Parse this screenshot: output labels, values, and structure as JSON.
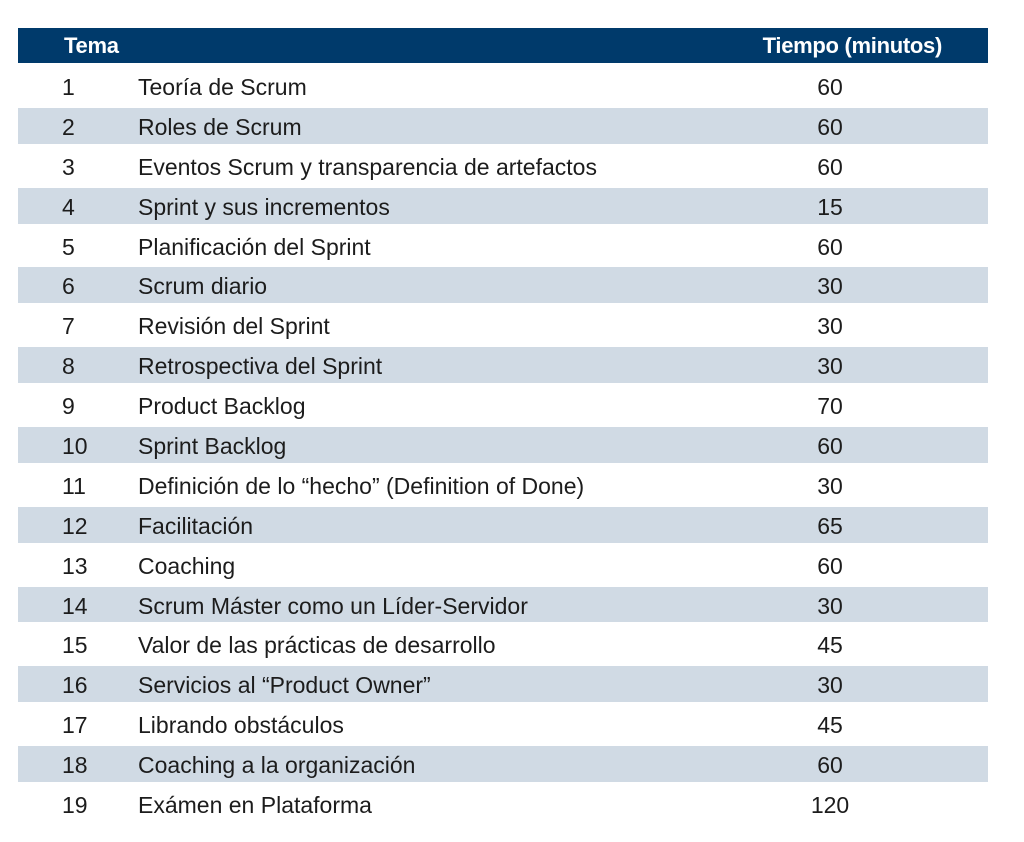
{
  "table": {
    "headers": {
      "topic": "Tema",
      "time": "Tiempo (minutos)"
    },
    "rows": [
      {
        "num": "1",
        "topic": "Teoría de Scrum",
        "time": "60"
      },
      {
        "num": "2",
        "topic": "Roles de Scrum",
        "time": "60"
      },
      {
        "num": "3",
        "topic": "Eventos Scrum y transparencia de artefactos",
        "time": "60"
      },
      {
        "num": "4",
        "topic": "Sprint y sus incrementos",
        "time": "15"
      },
      {
        "num": "5",
        "topic": "Planificación del Sprint",
        "time": "60"
      },
      {
        "num": "6",
        "topic": "Scrum diario",
        "time": "30"
      },
      {
        "num": "7",
        "topic": "Revisión del Sprint",
        "time": "30"
      },
      {
        "num": "8",
        "topic": "Retrospectiva del Sprint",
        "time": "30"
      },
      {
        "num": "9",
        "topic": "Product Backlog",
        "time": "70"
      },
      {
        "num": "10",
        "topic": "Sprint Backlog",
        "time": "60"
      },
      {
        "num": "11",
        "topic": "Definición de lo “hecho” (Definition of Done)",
        "time": "30"
      },
      {
        "num": "12",
        "topic": "Facilitación",
        "time": "65"
      },
      {
        "num": "13",
        "topic": "Coaching",
        "time": "60"
      },
      {
        "num": "14",
        "topic": "Scrum Máster como un Líder-Servidor",
        "time": "30"
      },
      {
        "num": "15",
        "topic": "Valor de las prácticas de desarrollo",
        "time": "45"
      },
      {
        "num": "16",
        "topic": "Servicios al “Product Owner”",
        "time": "30"
      },
      {
        "num": "17",
        "topic": "Librando obstáculos",
        "time": "45"
      },
      {
        "num": "18",
        "topic": "Coaching a la organización",
        "time": "60"
      },
      {
        "num": "19",
        "topic": "Exámen en Plataforma",
        "time": "120"
      }
    ]
  },
  "colors": {
    "header_bg": "#003a6b",
    "header_text": "#ffffff",
    "shaded_row": "#d0dae4"
  }
}
